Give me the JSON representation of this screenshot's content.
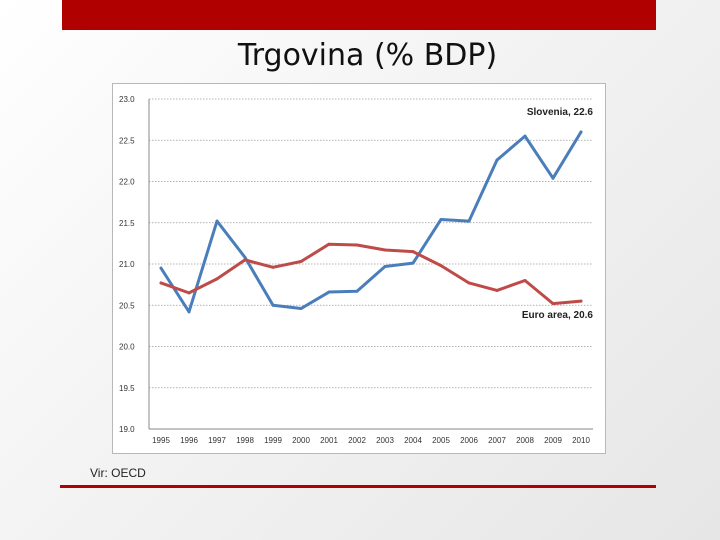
{
  "slide": {
    "title": "Trgovina (% BDP)",
    "source": "Vir: OECD"
  },
  "colors": {
    "accent": "#b00000",
    "slovenia": "#4a7ebb",
    "euro_area": "#be4b48"
  },
  "chart_data": {
    "type": "line",
    "title": "",
    "xlabel": "",
    "ylabel": "",
    "x": [
      "1995",
      "1996",
      "1997",
      "1998",
      "1999",
      "2000",
      "2001",
      "2002",
      "2003",
      "2004",
      "2005",
      "2006",
      "2007",
      "2008",
      "2009",
      "2010"
    ],
    "ylim": [
      19.0,
      23.0
    ],
    "yticks": [
      "19.0",
      "19.5",
      "20.0",
      "20.5",
      "21.0",
      "21.5",
      "22.0",
      "22.5",
      "23.0"
    ],
    "grid": true,
    "series": [
      {
        "name": "Slovenia",
        "label": "Slovenia, 22.6",
        "color": "#4a7ebb",
        "values": [
          20.95,
          20.42,
          21.52,
          21.08,
          20.5,
          20.46,
          20.66,
          20.67,
          20.97,
          21.01,
          21.54,
          21.52,
          22.26,
          22.55,
          22.04,
          22.6
        ]
      },
      {
        "name": "Euro area",
        "label": "Euro area, 20.6",
        "color": "#be4b48",
        "values": [
          20.77,
          20.65,
          20.82,
          21.05,
          20.96,
          21.03,
          21.24,
          21.23,
          21.17,
          21.15,
          20.98,
          20.77,
          20.68,
          20.8,
          20.52,
          20.55
        ]
      }
    ]
  }
}
